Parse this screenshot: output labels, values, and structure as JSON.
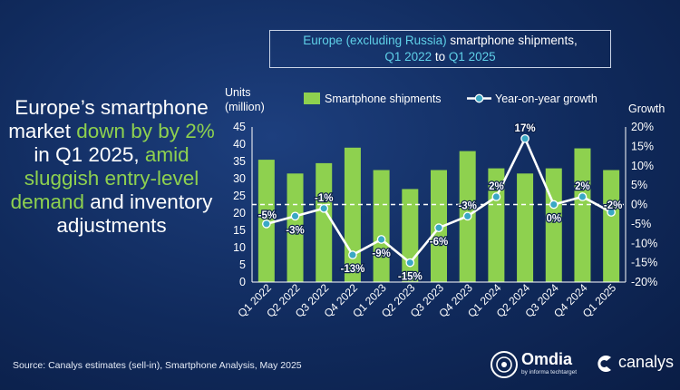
{
  "headline": {
    "part1": "Europe’s smartphone market ",
    "part2": "down by by 2%",
    "part3": " in Q1 2025, ",
    "part4": "amid sluggish entry-level demand",
    "part5": " and inventory adjustments"
  },
  "title_box": {
    "line1_a": "Europe (excluding Russia)",
    "line1_b": " smartphone shipments,",
    "line2_a": "Q1 2022",
    "line2_b": " to ",
    "line2_c": "Q1 2025"
  },
  "source": "Source: Canalys estimates (sell-in), Smartphone Analysis, May 2025",
  "logos": {
    "omdia": "Omdia",
    "omdia_sub": "by informa techtarget",
    "canalys": "canalys"
  },
  "colors": {
    "bar": "#8ed14f",
    "line": "#ffffff",
    "marker": "#3aa8c4",
    "accent_cyan": "#5fd0e8",
    "accent_green": "#8ed14f"
  },
  "chart_data": {
    "type": "bar",
    "categories": [
      "Q1 2022",
      "Q2 2022",
      "Q3 2022",
      "Q4 2022",
      "Q1 2023",
      "Q2 2023",
      "Q3 2023",
      "Q4 2023",
      "Q1 2024",
      "Q2 2024",
      "Q3 2024",
      "Q4 2024",
      "Q1 2025"
    ],
    "series": [
      {
        "name": "Smartphone shipments",
        "type": "bar",
        "axis": "left",
        "values": [
          35.5,
          31.5,
          34.5,
          39,
          32.5,
          27,
          32.5,
          38,
          33,
          31.5,
          33,
          38.8,
          32.5
        ]
      },
      {
        "name": "Year-on-year growth",
        "type": "line",
        "axis": "right",
        "values": [
          -5,
          -3,
          -1,
          -13,
          -9,
          -15,
          -6,
          -3,
          2,
          17,
          0,
          2,
          -2
        ],
        "labels": [
          "-5%",
          "-3%",
          "-1%",
          "-13%",
          "-9%",
          "-15%",
          "-6%",
          "-3%",
          "2%",
          "17%",
          "0%",
          "2%",
          "-2%"
        ]
      }
    ],
    "ylabel": "Units (million)",
    "ylabel_line1": "Units",
    "ylabel_line2": "(million)",
    "y2label": "Growth",
    "ylim": [
      0,
      45
    ],
    "yticks": [
      0,
      5,
      10,
      15,
      20,
      25,
      30,
      35,
      40,
      45
    ],
    "y2lim": [
      -20,
      20
    ],
    "y2ticks": [
      "20%",
      "15%",
      "10%",
      "5%",
      "0%",
      "-5%",
      "-10%",
      "-15%",
      "-20%"
    ],
    "zero_growth_line": "dashed",
    "legend": "top",
    "grid": false
  }
}
